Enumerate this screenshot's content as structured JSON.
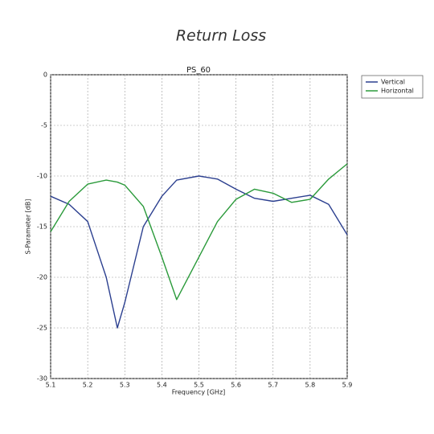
{
  "chart_data": {
    "type": "line",
    "title": "Return Loss",
    "subtitle": "PS_60",
    "x_label": "Frequency [GHz]",
    "y_label": "S-Parameter [dB]",
    "x": [
      5.1,
      5.15,
      5.2,
      5.25,
      5.28,
      5.3,
      5.35,
      5.4,
      5.44,
      5.5,
      5.55,
      5.6,
      5.65,
      5.7,
      5.75,
      5.8,
      5.85,
      5.9
    ],
    "series": [
      {
        "name": "Vertical",
        "color": "#2b3f8f",
        "values": [
          -12,
          -12.8,
          -14.5,
          -20,
          -25,
          -22.5,
          -15,
          -12,
          -10.4,
          -10,
          -10.3,
          -11.3,
          -12.2,
          -12.5,
          -12.2,
          -11.9,
          -12.8,
          -15.8
        ]
      },
      {
        "name": "Horizontal",
        "color": "#2a9a3a",
        "values": [
          -15.5,
          -12.5,
          -10.8,
          -10.4,
          -10.6,
          -10.9,
          -13,
          -18,
          -22.2,
          -18,
          -14.5,
          -12.3,
          -11.3,
          -11.7,
          -12.6,
          -12.3,
          -10.3,
          -8.8
        ]
      }
    ],
    "xlim": [
      5.1,
      5.9
    ],
    "xticks": [
      5.1,
      5.2,
      5.3,
      5.4,
      5.5,
      5.6,
      5.7,
      5.8,
      5.9
    ],
    "ylim": [
      -30,
      0
    ],
    "yticks": [
      -30,
      -25,
      -20,
      -15,
      -10,
      -5,
      0
    ],
    "grid": true,
    "legend": "outside upper right"
  }
}
